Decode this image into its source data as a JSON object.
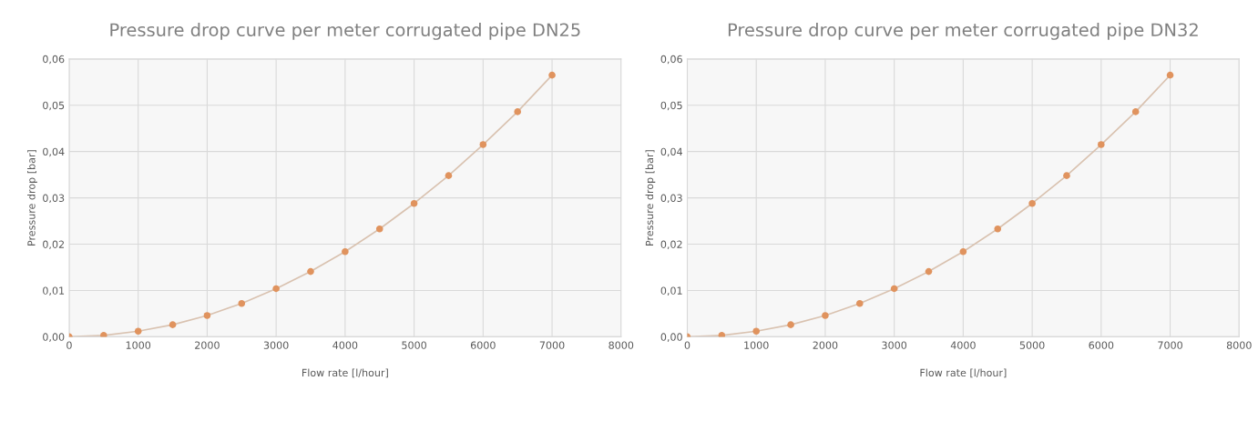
{
  "chart_data": [
    {
      "type": "line",
      "title": "Pressure drop curve per meter corrugated pipe DN25",
      "xlabel": "Flow rate [l/hour]",
      "ylabel": "Pressure drop [bar]",
      "x": [
        0,
        500,
        1000,
        1500,
        2000,
        2500,
        3000,
        3500,
        4000,
        4500,
        5000,
        5500,
        6000,
        6500,
        7000
      ],
      "series": [
        {
          "color": "#e0935e",
          "values": [
            0.0,
            0.0003,
            0.0012,
            0.0026,
            0.0046,
            0.0072,
            0.0104,
            0.0141,
            0.0184,
            0.0233,
            0.0288,
            0.0348,
            0.0415,
            0.0486,
            0.0565
          ]
        }
      ],
      "xlim": [
        0,
        8000
      ],
      "xticks": [
        0,
        1000,
        2000,
        3000,
        4000,
        5000,
        6000,
        7000,
        8000
      ],
      "ylim": [
        0,
        0.06
      ],
      "yticks": [
        {
          "value": 0,
          "label": "0,00"
        },
        {
          "value": 0.01,
          "label": "0,01"
        },
        {
          "value": 0.02,
          "label": "0,02"
        },
        {
          "value": 0.03,
          "label": "0,03"
        },
        {
          "value": 0.04,
          "label": "0,04"
        },
        {
          "value": 0.05,
          "label": "0,05"
        },
        {
          "value": 0.06,
          "label": "0,06"
        }
      ],
      "grid": true,
      "marker": "circle",
      "line_style": "solid"
    },
    {
      "type": "line",
      "title": "Pressure drop curve per meter corrugated pipe DN32",
      "xlabel": "Flow rate [l/hour]",
      "ylabel": "Pressure drop [bar]",
      "x": [
        0,
        500,
        1000,
        1500,
        2000,
        2500,
        3000,
        3500,
        4000,
        4500,
        5000,
        5500,
        6000,
        6500,
        7000
      ],
      "series": [
        {
          "color": "#e0935e",
          "values": [
            0.0,
            0.0003,
            0.0012,
            0.0026,
            0.0046,
            0.0072,
            0.0104,
            0.0141,
            0.0184,
            0.0233,
            0.0288,
            0.0348,
            0.0415,
            0.0486,
            0.0565
          ]
        }
      ],
      "xlim": [
        0,
        8000
      ],
      "xticks": [
        0,
        1000,
        2000,
        3000,
        4000,
        5000,
        6000,
        7000,
        8000
      ],
      "ylim": [
        0,
        0.06
      ],
      "yticks": [
        {
          "value": 0,
          "label": "0,00"
        },
        {
          "value": 0.01,
          "label": "0,01"
        },
        {
          "value": 0.02,
          "label": "0,02"
        },
        {
          "value": 0.03,
          "label": "0,03"
        },
        {
          "value": 0.04,
          "label": "0,04"
        },
        {
          "value": 0.05,
          "label": "0,05"
        },
        {
          "value": 0.06,
          "label": "0,06"
        }
      ],
      "grid": true,
      "marker": "circle",
      "line_style": "solid"
    }
  ]
}
